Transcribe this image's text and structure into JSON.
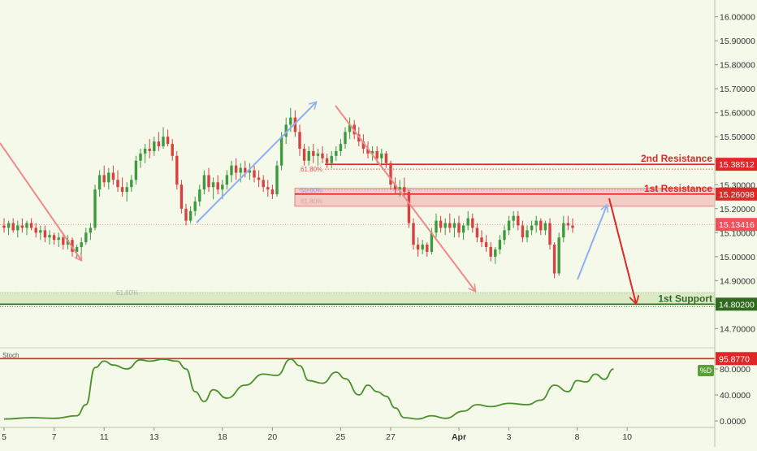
{
  "chart_data": [
    {
      "type": "candlestick",
      "ylim": [
        14.62,
        16.07
      ],
      "y_ticks": [
        "16.00000",
        "15.90000",
        "15.80000",
        "15.70000",
        "15.60000",
        "15.50000",
        "15.40000",
        "15.30000",
        "15.20000",
        "15.10000",
        "15.00000",
        "14.90000",
        "14.80000",
        "14.70000"
      ],
      "y_tick_values": [
        16.0,
        15.9,
        15.8,
        15.7,
        15.6,
        15.5,
        15.4,
        15.3,
        15.2,
        15.1,
        15.0,
        14.9,
        14.8,
        14.7
      ],
      "x_ticks": [
        "5",
        "7",
        "11",
        "13",
        "18",
        "20",
        "25",
        "27",
        "Apr",
        "3",
        "8",
        "10"
      ],
      "x_tick_bar_index": [
        0,
        11,
        22,
        33,
        48,
        59,
        74,
        85,
        100,
        111,
        126,
        137
      ],
      "bar_count": 150,
      "price_bars": [
        {
          "o": 15.13,
          "h": 15.16,
          "l": 15.1,
          "c": 15.12
        },
        {
          "o": 15.12,
          "h": 15.15,
          "l": 15.09,
          "c": 15.14
        },
        {
          "o": 15.14,
          "h": 15.16,
          "l": 15.1,
          "c": 15.11
        },
        {
          "o": 15.11,
          "h": 15.15,
          "l": 15.08,
          "c": 15.13
        },
        {
          "o": 15.13,
          "h": 15.16,
          "l": 15.1,
          "c": 15.12
        },
        {
          "o": 15.12,
          "h": 15.15,
          "l": 15.09,
          "c": 15.14
        },
        {
          "o": 15.14,
          "h": 15.16,
          "l": 15.11,
          "c": 15.12
        },
        {
          "o": 15.12,
          "h": 15.14,
          "l": 15.08,
          "c": 15.1
        },
        {
          "o": 15.1,
          "h": 15.13,
          "l": 15.07,
          "c": 15.11
        },
        {
          "o": 15.11,
          "h": 15.13,
          "l": 15.06,
          "c": 15.08
        },
        {
          "o": 15.08,
          "h": 15.11,
          "l": 15.05,
          "c": 15.09
        },
        {
          "o": 15.09,
          "h": 15.1,
          "l": 15.05,
          "c": 15.07
        },
        {
          "o": 15.07,
          "h": 15.1,
          "l": 15.04,
          "c": 15.08
        },
        {
          "o": 15.08,
          "h": 15.1,
          "l": 15.03,
          "c": 15.05
        },
        {
          "o": 15.05,
          "h": 15.09,
          "l": 15.03,
          "c": 15.07
        },
        {
          "o": 15.07,
          "h": 15.08,
          "l": 15.0,
          "c": 15.02
        },
        {
          "o": 15.02,
          "h": 15.05,
          "l": 14.99,
          "c": 15.04
        },
        {
          "o": 15.04,
          "h": 15.08,
          "l": 15.01,
          "c": 15.06
        },
        {
          "o": 15.06,
          "h": 15.12,
          "l": 15.05,
          "c": 15.1
        },
        {
          "o": 15.1,
          "h": 15.14,
          "l": 15.07,
          "c": 15.12
        },
        {
          "o": 15.12,
          "h": 15.3,
          "l": 15.11,
          "c": 15.28
        },
        {
          "o": 15.28,
          "h": 15.36,
          "l": 15.25,
          "c": 15.34
        },
        {
          "o": 15.34,
          "h": 15.38,
          "l": 15.29,
          "c": 15.31
        },
        {
          "o": 15.31,
          "h": 15.37,
          "l": 15.28,
          "c": 15.35
        },
        {
          "o": 15.35,
          "h": 15.38,
          "l": 15.3,
          "c": 15.32
        },
        {
          "o": 15.32,
          "h": 15.36,
          "l": 15.27,
          "c": 15.29
        },
        {
          "o": 15.29,
          "h": 15.33,
          "l": 15.25,
          "c": 15.27
        },
        {
          "o": 15.27,
          "h": 15.31,
          "l": 15.23,
          "c": 15.29
        },
        {
          "o": 15.29,
          "h": 15.34,
          "l": 15.27,
          "c": 15.32
        },
        {
          "o": 15.32,
          "h": 15.42,
          "l": 15.3,
          "c": 15.4
        },
        {
          "o": 15.4,
          "h": 15.45,
          "l": 15.37,
          "c": 15.43
        },
        {
          "o": 15.43,
          "h": 15.47,
          "l": 15.39,
          "c": 15.45
        },
        {
          "o": 15.45,
          "h": 15.49,
          "l": 15.41,
          "c": 15.44
        },
        {
          "o": 15.44,
          "h": 15.5,
          "l": 15.42,
          "c": 15.48
        },
        {
          "o": 15.48,
          "h": 15.52,
          "l": 15.44,
          "c": 15.46
        },
        {
          "o": 15.46,
          "h": 15.54,
          "l": 15.45,
          "c": 15.5
        },
        {
          "o": 15.5,
          "h": 15.53,
          "l": 15.46,
          "c": 15.47
        },
        {
          "o": 15.47,
          "h": 15.49,
          "l": 15.4,
          "c": 15.42
        },
        {
          "o": 15.42,
          "h": 15.44,
          "l": 15.28,
          "c": 15.3
        },
        {
          "o": 15.3,
          "h": 15.32,
          "l": 15.18,
          "c": 15.2
        },
        {
          "o": 15.2,
          "h": 15.22,
          "l": 15.13,
          "c": 15.15
        },
        {
          "o": 15.15,
          "h": 15.21,
          "l": 15.14,
          "c": 15.19
        },
        {
          "o": 15.19,
          "h": 15.25,
          "l": 15.17,
          "c": 15.23
        },
        {
          "o": 15.23,
          "h": 15.3,
          "l": 15.21,
          "c": 15.28
        },
        {
          "o": 15.28,
          "h": 15.36,
          "l": 15.26,
          "c": 15.34
        },
        {
          "o": 15.34,
          "h": 15.37,
          "l": 15.27,
          "c": 15.29
        },
        {
          "o": 15.29,
          "h": 15.33,
          "l": 15.24,
          "c": 15.31
        },
        {
          "o": 15.31,
          "h": 15.34,
          "l": 15.26,
          "c": 15.28
        },
        {
          "o": 15.28,
          "h": 15.32,
          "l": 15.24,
          "c": 15.3
        },
        {
          "o": 15.3,
          "h": 15.36,
          "l": 15.28,
          "c": 15.34
        },
        {
          "o": 15.34,
          "h": 15.4,
          "l": 15.31,
          "c": 15.38
        },
        {
          "o": 15.38,
          "h": 15.41,
          "l": 15.32,
          "c": 15.35
        },
        {
          "o": 15.35,
          "h": 15.39,
          "l": 15.31,
          "c": 15.37
        },
        {
          "o": 15.37,
          "h": 15.4,
          "l": 15.33,
          "c": 15.35
        },
        {
          "o": 15.35,
          "h": 15.39,
          "l": 15.32,
          "c": 15.36
        },
        {
          "o": 15.36,
          "h": 15.38,
          "l": 15.31,
          "c": 15.33
        },
        {
          "o": 15.33,
          "h": 15.36,
          "l": 15.29,
          "c": 15.32
        },
        {
          "o": 15.32,
          "h": 15.34,
          "l": 15.27,
          "c": 15.29
        },
        {
          "o": 15.29,
          "h": 15.32,
          "l": 15.25,
          "c": 15.28
        },
        {
          "o": 15.28,
          "h": 15.3,
          "l": 15.24,
          "c": 15.26
        },
        {
          "o": 15.26,
          "h": 15.4,
          "l": 15.25,
          "c": 15.38
        },
        {
          "o": 15.38,
          "h": 15.52,
          "l": 15.36,
          "c": 15.5
        },
        {
          "o": 15.5,
          "h": 15.58,
          "l": 15.47,
          "c": 15.55
        },
        {
          "o": 15.55,
          "h": 15.62,
          "l": 15.52,
          "c": 15.58
        },
        {
          "o": 15.58,
          "h": 15.61,
          "l": 15.5,
          "c": 15.52
        },
        {
          "o": 15.52,
          "h": 15.55,
          "l": 15.42,
          "c": 15.45
        },
        {
          "o": 15.45,
          "h": 15.47,
          "l": 15.38,
          "c": 15.4
        },
        {
          "o": 15.4,
          "h": 15.46,
          "l": 15.38,
          "c": 15.44
        },
        {
          "o": 15.44,
          "h": 15.47,
          "l": 15.39,
          "c": 15.42
        },
        {
          "o": 15.42,
          "h": 15.45,
          "l": 15.38,
          "c": 15.43
        },
        {
          "o": 15.43,
          "h": 15.46,
          "l": 15.39,
          "c": 15.41
        },
        {
          "o": 15.41,
          "h": 15.43,
          "l": 15.37,
          "c": 15.39
        },
        {
          "o": 15.39,
          "h": 15.44,
          "l": 15.37,
          "c": 15.42
        },
        {
          "o": 15.42,
          "h": 15.46,
          "l": 15.4,
          "c": 15.44
        },
        {
          "o": 15.44,
          "h": 15.49,
          "l": 15.42,
          "c": 15.47
        },
        {
          "o": 15.47,
          "h": 15.54,
          "l": 15.45,
          "c": 15.52
        },
        {
          "o": 15.52,
          "h": 15.58,
          "l": 15.49,
          "c": 15.55
        },
        {
          "o": 15.55,
          "h": 15.57,
          "l": 15.49,
          "c": 15.51
        },
        {
          "o": 15.51,
          "h": 15.54,
          "l": 15.46,
          "c": 15.48
        },
        {
          "o": 15.48,
          "h": 15.51,
          "l": 15.43,
          "c": 15.45
        },
        {
          "o": 15.45,
          "h": 15.48,
          "l": 15.41,
          "c": 15.43
        },
        {
          "o": 15.43,
          "h": 15.46,
          "l": 15.4,
          "c": 15.44
        },
        {
          "o": 15.44,
          "h": 15.46,
          "l": 15.39,
          "c": 15.41
        },
        {
          "o": 15.41,
          "h": 15.45,
          "l": 15.38,
          "c": 15.43
        },
        {
          "o": 15.43,
          "h": 15.44,
          "l": 15.37,
          "c": 15.39
        },
        {
          "o": 15.39,
          "h": 15.4,
          "l": 15.28,
          "c": 15.3
        },
        {
          "o": 15.3,
          "h": 15.33,
          "l": 15.26,
          "c": 15.28
        },
        {
          "o": 15.28,
          "h": 15.32,
          "l": 15.25,
          "c": 15.29
        },
        {
          "o": 15.29,
          "h": 15.33,
          "l": 15.25,
          "c": 15.27
        },
        {
          "o": 15.27,
          "h": 15.28,
          "l": 15.12,
          "c": 15.14
        },
        {
          "o": 15.14,
          "h": 15.16,
          "l": 15.03,
          "c": 15.05
        },
        {
          "o": 15.05,
          "h": 15.08,
          "l": 15.0,
          "c": 15.03
        },
        {
          "o": 15.03,
          "h": 15.07,
          "l": 15.01,
          "c": 15.05
        },
        {
          "o": 15.05,
          "h": 15.06,
          "l": 15.0,
          "c": 15.02
        },
        {
          "o": 15.02,
          "h": 15.12,
          "l": 15.01,
          "c": 15.1
        },
        {
          "o": 15.1,
          "h": 15.18,
          "l": 15.08,
          "c": 15.15
        },
        {
          "o": 15.15,
          "h": 15.17,
          "l": 15.1,
          "c": 15.12
        },
        {
          "o": 15.12,
          "h": 15.16,
          "l": 15.09,
          "c": 15.14
        },
        {
          "o": 15.14,
          "h": 15.18,
          "l": 15.1,
          "c": 15.12
        },
        {
          "o": 15.12,
          "h": 15.16,
          "l": 15.08,
          "c": 15.14
        },
        {
          "o": 15.14,
          "h": 15.17,
          "l": 15.08,
          "c": 15.1
        },
        {
          "o": 15.1,
          "h": 15.14,
          "l": 15.07,
          "c": 15.13
        },
        {
          "o": 15.13,
          "h": 15.19,
          "l": 15.11,
          "c": 15.16
        },
        {
          "o": 15.16,
          "h": 15.18,
          "l": 15.1,
          "c": 15.12
        },
        {
          "o": 15.12,
          "h": 15.14,
          "l": 15.06,
          "c": 15.08
        },
        {
          "o": 15.08,
          "h": 15.11,
          "l": 15.04,
          "c": 15.06
        },
        {
          "o": 15.06,
          "h": 15.09,
          "l": 15.02,
          "c": 15.04
        },
        {
          "o": 15.04,
          "h": 15.06,
          "l": 14.98,
          "c": 15.0
        },
        {
          "o": 15.0,
          "h": 15.04,
          "l": 14.97,
          "c": 15.03
        },
        {
          "o": 15.03,
          "h": 15.09,
          "l": 15.01,
          "c": 15.07
        },
        {
          "o": 15.07,
          "h": 15.13,
          "l": 15.05,
          "c": 15.11
        },
        {
          "o": 15.11,
          "h": 15.17,
          "l": 15.09,
          "c": 15.15
        },
        {
          "o": 15.15,
          "h": 15.19,
          "l": 15.12,
          "c": 15.17
        },
        {
          "o": 15.17,
          "h": 15.19,
          "l": 15.11,
          "c": 15.13
        },
        {
          "o": 15.13,
          "h": 15.15,
          "l": 15.06,
          "c": 15.08
        },
        {
          "o": 15.08,
          "h": 15.13,
          "l": 15.06,
          "c": 15.11
        },
        {
          "o": 15.11,
          "h": 15.15,
          "l": 15.09,
          "c": 15.13
        },
        {
          "o": 15.13,
          "h": 15.17,
          "l": 15.1,
          "c": 15.15
        },
        {
          "o": 15.15,
          "h": 15.16,
          "l": 15.09,
          "c": 15.11
        },
        {
          "o": 15.11,
          "h": 15.15,
          "l": 15.09,
          "c": 15.14
        },
        {
          "o": 15.14,
          "h": 15.16,
          "l": 15.03,
          "c": 15.05
        },
        {
          "o": 15.05,
          "h": 15.06,
          "l": 14.91,
          "c": 14.93
        },
        {
          "o": 14.93,
          "h": 15.1,
          "l": 14.92,
          "c": 15.08
        },
        {
          "o": 15.08,
          "h": 15.17,
          "l": 15.06,
          "c": 15.14
        },
        {
          "o": 15.14,
          "h": 15.17,
          "l": 15.11,
          "c": 15.13
        },
        {
          "o": 15.13,
          "h": 15.16,
          "l": 15.1,
          "c": 15.12
        }
      ],
      "stoch": {
        "title": "Stoch",
        "ylim": [
          -10,
          110
        ],
        "y_ticks": [
          "0.0000",
          "40.0000",
          "80.0000"
        ],
        "y_tick_values": [
          0,
          40,
          80
        ],
        "level_label": "95.8770",
        "level": 95.877,
        "tag": "%D",
        "line_color": "#4a8f2a",
        "points": [
          [
            0,
            3
          ],
          [
            6,
            5
          ],
          [
            11,
            4
          ],
          [
            16,
            8
          ],
          [
            18,
            25
          ],
          [
            20,
            82
          ],
          [
            22,
            92
          ],
          [
            24,
            86
          ],
          [
            27,
            80
          ],
          [
            30,
            94
          ],
          [
            32,
            92
          ],
          [
            35,
            95
          ],
          [
            38,
            92
          ],
          [
            40,
            80
          ],
          [
            42,
            45
          ],
          [
            44,
            30
          ],
          [
            46,
            48
          ],
          [
            49,
            35
          ],
          [
            53,
            55
          ],
          [
            57,
            72
          ],
          [
            60,
            70
          ],
          [
            63,
            95
          ],
          [
            65,
            85
          ],
          [
            67,
            62
          ],
          [
            70,
            58
          ],
          [
            73,
            75
          ],
          [
            75,
            65
          ],
          [
            78,
            40
          ],
          [
            80,
            55
          ],
          [
            82,
            45
          ],
          [
            84,
            38
          ],
          [
            86,
            20
          ],
          [
            88,
            5
          ],
          [
            91,
            3
          ],
          [
            94,
            8
          ],
          [
            97,
            4
          ],
          [
            101,
            15
          ],
          [
            104,
            25
          ],
          [
            107,
            22
          ],
          [
            111,
            27
          ],
          [
            115,
            25
          ],
          [
            118,
            32
          ],
          [
            121,
            55
          ],
          [
            124,
            45
          ],
          [
            126,
            62
          ],
          [
            128,
            60
          ],
          [
            130,
            72
          ],
          [
            132,
            64
          ],
          [
            134,
            80
          ]
        ]
      },
      "price_axis_tags": [
        {
          "label": "15.38512",
          "value": 15.38512,
          "color": "#e02626",
          "text_color": "#ffffff"
        },
        {
          "label": "15.26098",
          "value": 15.26098,
          "color": "#e02626",
          "text_color": "#ffffff"
        },
        {
          "label": "15.13416",
          "value": 15.13416,
          "color": "#f0505a",
          "text_color": "#ffffff"
        },
        {
          "label": "14.80200",
          "value": 14.802,
          "color": "#2f6a1f",
          "text_color": "#ffffff"
        },
        {
          "label": "95.8770",
          "value": 95.877,
          "color": "#e02626",
          "text_color": "#ffffff"
        }
      ],
      "annotations": [
        {
          "label": "2nd Resistance",
          "value": 15.38512,
          "color": "#e02626"
        },
        {
          "label": "1st Resistance",
          "value": 15.26098,
          "color": "#e02626"
        },
        {
          "label": "1st Support",
          "value": 14.802,
          "color": "#2f6a1f"
        },
        {
          "label": "61.80%",
          "value": 15.365,
          "color": "#e05050"
        },
        {
          "label": "50.00%",
          "value": 15.278,
          "color": "#8da0e0"
        },
        {
          "label": "61.80%",
          "value": 15.232,
          "color": "#e0a0a0"
        },
        {
          "label": "61.80%",
          "value": 14.85,
          "color": "#b0b8a0"
        }
      ],
      "resistance_zone": [
        15.21,
        15.285
      ],
      "support_zone": [
        14.8,
        14.852
      ],
      "current_price": 15.13416,
      "colors": {
        "up": "#3f9a3f",
        "down": "#d94040",
        "background": "#f4f9e9"
      }
    }
  ]
}
